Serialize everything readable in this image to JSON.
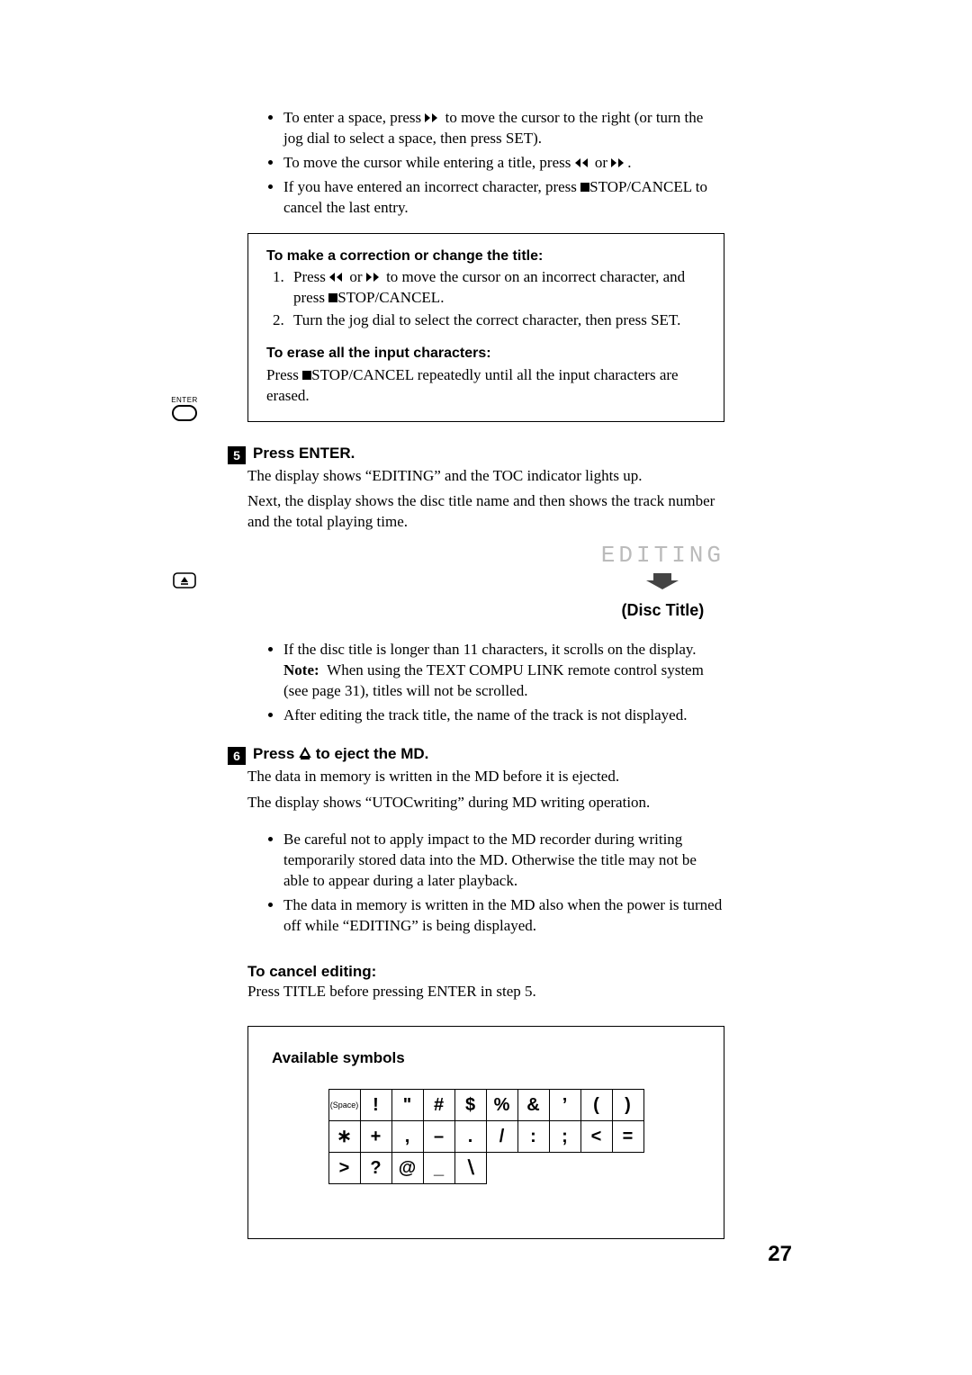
{
  "page_number": "27",
  "intro_bullets": [
    {
      "html": "To enter a space, press <svg class='sym' width='18' height='10'><polygon points='0,0 6,5 0,10' fill='#000'/><polygon points='8,0 14,5 8,10' fill='#000'/></svg> to move the cursor to the right (or turn the jog dial to select a space, then press SET)."
    },
    {
      "html": "To move the cursor while entering a title, press <svg class='sym' width='18' height='10'><polygon points='6,0 0,5 6,10' fill='#000'/><polygon points='14,0 8,5 14,10' fill='#000'/></svg> or <svg class='sym' width='18' height='10'><polygon points='0,0 6,5 0,10' fill='#000'/><polygon points='8,0 14,5 8,10' fill='#000'/></svg>."
    },
    {
      "html": "If you have entered an incorrect character, press <svg class='sym' width='10' height='10'><rect x='0' y='0' width='10' height='10' fill='#000'/></svg>STOP/CANCEL to cancel the last entry."
    }
  ],
  "box1": {
    "h1": "To make a correction or change the title:",
    "items": [
      {
        "html": "Press <svg class='sym' width='18' height='10'><polygon points='6,0 0,5 6,10' fill='#000'/><polygon points='14,0 8,5 14,10' fill='#000'/></svg> or <svg class='sym' width='18' height='10'><polygon points='0,0 6,5 0,10' fill='#000'/><polygon points='8,0 14,5 8,10' fill='#000'/></svg> to move the cursor on an incorrect character, and press <svg class='sym' width='10' height='10'><rect x='0' y='0' width='10' height='10' fill='#000'/></svg>STOP/CANCEL."
      },
      {
        "html": "Turn the jog dial to select the correct character, then press SET."
      }
    ],
    "h2": "To erase all the input characters:",
    "erase_html": "Press <svg class='sym' width='10' height='10'><rect x='0' y='0' width='10' height='10' fill='#000'/></svg>STOP/CANCEL repeatedly until all the input characters are erased."
  },
  "step5": {
    "num": "5",
    "title": "Press ENTER.",
    "body1": "The display shows “EDITING” and the TOC indicator lights up.",
    "body2": "Next, the display shows the disc title name and then shows the track number and the total playing time.",
    "editing_text": "EDITING",
    "disc_title": "(Disc Title)",
    "bullets": [
      {
        "html": "If the disc title is longer than 11 characters, it scrolls on the display.<br><b>Note:</b>&nbsp;&nbsp;When using the TEXT COMPU LINK remote control system (see page 31), titles will not be scrolled."
      },
      {
        "html": "After editing the track title, the name of the track is not displayed."
      }
    ]
  },
  "step6": {
    "num": "6",
    "title_html": "Press <svg width='14' height='14' style='vertical-align:-1px'><polygon points='7,2 12,11 2,11' fill='none' stroke='#000' stroke-width='2'/><line x1='2' y1='13' x2='12' y2='13' stroke='#000' stroke-width='2'/></svg> to eject the MD.",
    "body1": "The data in memory is written in the MD before it is ejected.",
    "body2": "The display shows “UTOCwriting” during MD writing operation.",
    "bullets": [
      "Be careful not to apply impact to the MD recorder during writing temporarily stored data into the MD. Otherwise the title may not be able to appear during a later playback.",
      "The data in memory is written in the MD also when the power is turned off while “EDITING” is being displayed."
    ]
  },
  "cancel": {
    "heading": "To cancel editing:",
    "body": "Press TITLE before pressing ENTER in step 5."
  },
  "symbols": {
    "heading": "Available symbols",
    "rows": [
      [
        "(Space)",
        "!",
        "\"",
        "#",
        "$",
        "%",
        "&",
        "’",
        "(",
        ")"
      ],
      [
        "∗",
        "+",
        ",",
        "–",
        ".",
        "/",
        ":",
        ";",
        "<",
        "="
      ],
      [
        ">",
        "?",
        "@",
        "_",
        "∖",
        "",
        "",
        "",
        "",
        ""
      ]
    ]
  },
  "margin": {
    "enter_label": "ENTER"
  }
}
